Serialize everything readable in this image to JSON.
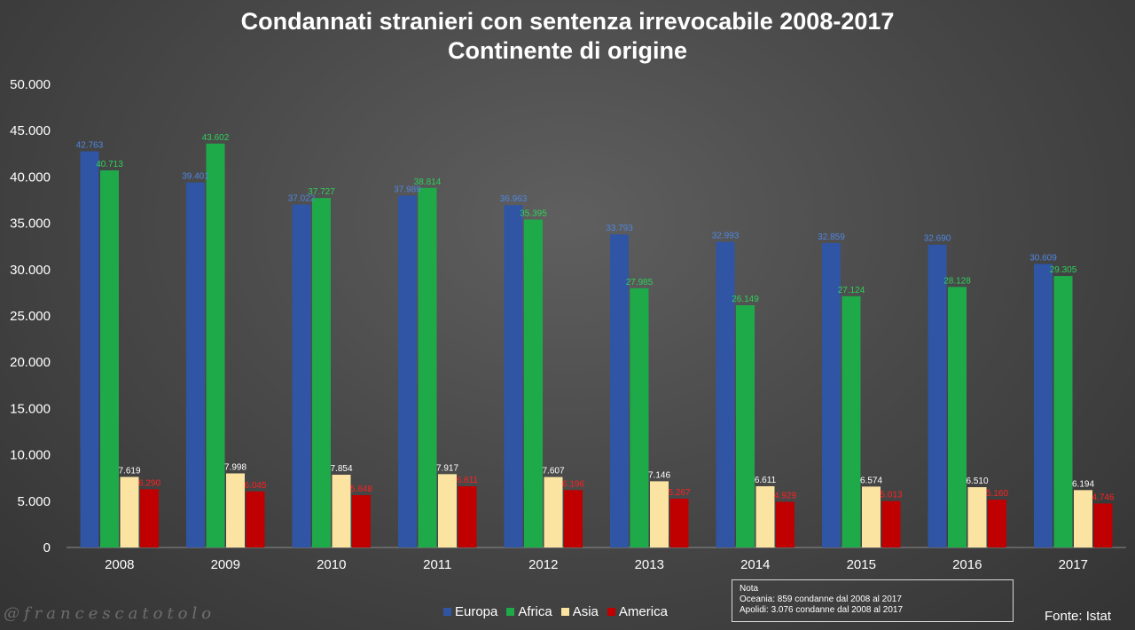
{
  "header": {
    "title_line1": "Condannati stranieri con sentenza irrevocabile 2008-2017",
    "title_line2": "Continente di origine"
  },
  "note": {
    "heading": "Nota",
    "line1": "Oceania: 859 condanne dal 2008 al 2017",
    "line2": "Apolidi: 3.076 condanne dal 2008 al 2017"
  },
  "source": "Fonte: Istat",
  "watermark": "@francescatotolo",
  "chart_data": {
    "type": "bar",
    "title": "Condannati stranieri con sentenza irrevocabile 2008-2017 — Continente di origine",
    "xlabel": "",
    "ylabel": "",
    "ylim": [
      0,
      50000
    ],
    "ytick_step": 5000,
    "yticks": [
      "0",
      "5.000",
      "10.000",
      "15.000",
      "20.000",
      "25.000",
      "30.000",
      "35.000",
      "40.000",
      "45.000",
      "50.000"
    ],
    "grid": false,
    "legend_position": "bottom",
    "categories": [
      "2008",
      "2009",
      "2010",
      "2011",
      "2012",
      "2013",
      "2014",
      "2015",
      "2016",
      "2017"
    ],
    "series": [
      {
        "name": "Europa",
        "color": "#2f55a4",
        "label_color": "#4f86e0",
        "values": [
          42763,
          39401,
          37022,
          37989,
          36963,
          33793,
          32993,
          32859,
          32690,
          30609
        ],
        "labels": [
          "42.763",
          "39.401",
          "37.022",
          "37.989",
          "36.963",
          "33.793",
          "32.993",
          "32.859",
          "32.690",
          "30.609"
        ]
      },
      {
        "name": "Africa",
        "color": "#1faa4a",
        "label_color": "#2ed15a",
        "values": [
          40713,
          43602,
          37727,
          38814,
          35395,
          27985,
          26149,
          27124,
          28128,
          29305
        ],
        "labels": [
          "40.713",
          "43.602",
          "37.727",
          "38.814",
          "35.395",
          "27.985",
          "26.149",
          "27.124",
          "28.128",
          "29.305"
        ]
      },
      {
        "name": "Asia",
        "color": "#fbe3a2",
        "label_color": "#ffffff",
        "values": [
          7619,
          7998,
          7854,
          7917,
          7607,
          7146,
          6611,
          6574,
          6510,
          6194
        ],
        "labels": [
          "7.619",
          "7.998",
          "7.854",
          "7.917",
          "7.607",
          "7.146",
          "6.611",
          "6.574",
          "6.510",
          "6.194"
        ]
      },
      {
        "name": "America",
        "color": "#c00000",
        "label_color": "#ff2020",
        "values": [
          6290,
          6045,
          5648,
          6611,
          6196,
          5267,
          4929,
          5013,
          5160,
          4746
        ],
        "labels": [
          "6.290",
          "6.045",
          "5.648",
          "6.611",
          "6.196",
          "5.267",
          "4.929",
          "5.013",
          "5.160",
          "4.746"
        ]
      }
    ]
  }
}
